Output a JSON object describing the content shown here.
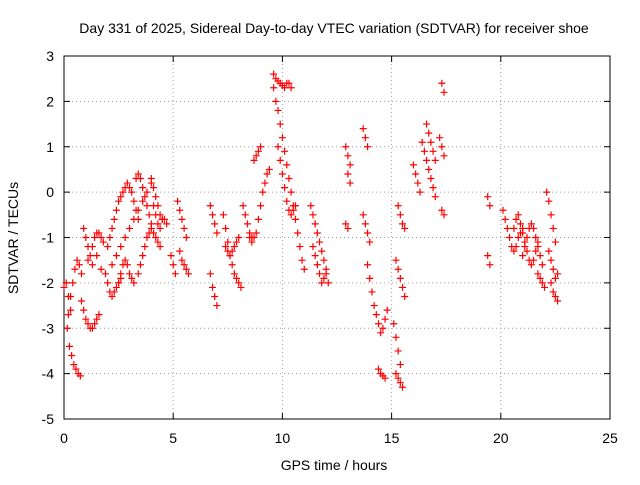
{
  "chart_data": {
    "type": "scatter",
    "title": "Day 331 of 2025, Sidereal Day-to-day VTEC variation (SDTVAR) for receiver shoe",
    "xlabel": "GPS time / hours",
    "ylabel": "SDTVAR / TECUs",
    "xlim": [
      0,
      25
    ],
    "ylim": [
      -5,
      3
    ],
    "x_ticks": [
      0,
      5,
      10,
      15,
      20,
      25
    ],
    "y_ticks": [
      -5,
      -4,
      -3,
      -2,
      -1,
      0,
      1,
      2,
      3
    ],
    "x_tick_labels": [
      "0",
      "5",
      "10",
      "15",
      "20",
      "25"
    ],
    "y_tick_labels": [
      "-5",
      "-4",
      "-3",
      "-2",
      "-1",
      "0",
      "1",
      "2",
      "3"
    ],
    "grid": true,
    "legend": "none",
    "marker": "+",
    "color": "#ff0000",
    "series": [
      {
        "name": "SDTVAR",
        "tracks": [
          {
            "x": [
              0.0,
              0.1,
              0.2,
              0.3
            ],
            "y": [
              -2.1,
              -2.0,
              -2.3,
              -2.6
            ]
          },
          {
            "x": [
              0.15,
              0.25,
              0.35,
              0.45,
              0.55,
              0.65,
              0.75
            ],
            "y": [
              -3.0,
              -3.4,
              -3.6,
              -3.8,
              -3.9,
              -4.0,
              -4.05
            ]
          },
          {
            "x": [
              0.2,
              0.3,
              0.4,
              0.5,
              0.6,
              0.7,
              0.8
            ],
            "y": [
              -2.7,
              -2.3,
              -2.0,
              -1.7,
              -1.5,
              -1.6,
              -1.8
            ]
          },
          {
            "x": [
              0.8,
              0.9,
              1.0,
              1.1,
              1.2,
              1.3,
              1.4,
              1.5,
              1.6
            ],
            "y": [
              -2.4,
              -2.6,
              -2.8,
              -2.9,
              -3.0,
              -3.0,
              -2.9,
              -2.8,
              -2.7
            ]
          },
          {
            "x": [
              0.9,
              1.0,
              1.1,
              1.2,
              1.3,
              1.4,
              1.5,
              1.6,
              1.7,
              1.8
            ],
            "y": [
              -0.8,
              -1.0,
              -1.2,
              -1.4,
              -1.2,
              -1.0,
              -0.9,
              -0.9,
              -1.0,
              -1.1
            ]
          },
          {
            "x": [
              1.1,
              1.3,
              1.5,
              1.7
            ],
            "y": [
              -1.5,
              -1.6,
              -1.4,
              -1.7
            ]
          },
          {
            "x": [
              1.9,
              2.0,
              2.1,
              2.2,
              2.3,
              2.4,
              2.5,
              2.6
            ],
            "y": [
              -1.8,
              -2.0,
              -2.2,
              -2.3,
              -2.2,
              -2.1,
              -2.0,
              -1.9
            ]
          },
          {
            "x": [
              2.0,
              2.1,
              2.2,
              2.3,
              2.4,
              2.5,
              2.6,
              2.7,
              2.8,
              2.9,
              3.0,
              3.1,
              3.2,
              3.3,
              3.4
            ],
            "y": [
              -1.2,
              -1.0,
              -0.8,
              -0.6,
              -0.4,
              -0.2,
              -0.1,
              0.0,
              0.1,
              0.2,
              0.1,
              0.0,
              -0.2,
              -0.4,
              -0.6
            ]
          },
          {
            "x": [
              2.2,
              2.4,
              2.6,
              2.8,
              3.0,
              3.2,
              3.4,
              3.6,
              3.8,
              4.0
            ],
            "y": [
              -1.6,
              -1.4,
              -1.2,
              -1.0,
              -0.8,
              -0.6,
              -0.4,
              -0.2,
              0.0,
              0.2
            ]
          },
          {
            "x": [
              2.5,
              2.6,
              2.7,
              2.8,
              2.9,
              3.0,
              3.1,
              3.2
            ],
            "y": [
              -2.0,
              -1.8,
              -1.6,
              -1.5,
              -1.6,
              -1.8,
              -1.9,
              -2.0
            ]
          },
          {
            "x": [
              3.3,
              3.4,
              3.5,
              3.6,
              3.7,
              3.8,
              3.9,
              4.0,
              4.1,
              4.2,
              4.3,
              4.4
            ],
            "y": [
              0.3,
              0.4,
              0.3,
              0.1,
              -0.1,
              -0.3,
              -0.5,
              -0.7,
              -0.9,
              -1.0,
              -1.1,
              -1.2
            ]
          },
          {
            "x": [
              3.4,
              3.5,
              3.6,
              3.7,
              3.8,
              3.9,
              4.0
            ],
            "y": [
              -1.8,
              -1.6,
              -1.4,
              -1.2,
              -1.0,
              -0.9,
              -0.8
            ]
          },
          {
            "x": [
              4.0,
              4.1,
              4.2,
              4.3,
              4.4,
              4.5,
              4.6,
              4.7
            ],
            "y": [
              0.3,
              0.1,
              -0.1,
              -0.3,
              -0.5,
              -0.6,
              -0.6,
              -0.7
            ]
          },
          {
            "x": [
              4.1,
              4.2,
              4.3,
              4.4,
              4.5
            ],
            "y": [
              -0.3,
              -0.5,
              -0.7,
              -0.8,
              -0.6
            ]
          },
          {
            "x": [
              4.9,
              5.0,
              5.1
            ],
            "y": [
              -1.4,
              -1.6,
              -1.8
            ]
          },
          {
            "x": [
              5.2,
              5.3,
              5.4,
              5.5,
              5.6
            ],
            "y": [
              -0.2,
              -0.4,
              -0.6,
              -0.8,
              -1.0
            ]
          },
          {
            "x": [
              5.3,
              5.4,
              5.5,
              5.6,
              5.7
            ],
            "y": [
              -1.3,
              -1.5,
              -1.6,
              -1.7,
              -1.8
            ]
          },
          {
            "x": [
              6.7,
              6.8,
              6.9,
              7.0
            ],
            "y": [
              -0.3,
              -0.5,
              -0.7,
              -0.9
            ]
          },
          {
            "x": [
              6.7,
              6.8,
              6.9,
              7.0
            ],
            "y": [
              -1.8,
              -2.1,
              -2.3,
              -2.5
            ]
          },
          {
            "x": [
              7.3,
              7.4,
              7.5,
              7.6,
              7.7,
              7.8,
              7.9,
              8.0,
              8.1
            ],
            "y": [
              -0.5,
              -0.8,
              -1.1,
              -1.4,
              -1.6,
              -1.8,
              -1.9,
              -2.0,
              -2.1
            ]
          },
          {
            "x": [
              7.4,
              7.5,
              7.6,
              7.7,
              7.8,
              7.9,
              8.0
            ],
            "y": [
              -1.2,
              -1.3,
              -1.4,
              -1.3,
              -1.2,
              -1.1,
              -1.0
            ]
          },
          {
            "x": [
              8.2,
              8.3,
              8.4,
              8.5,
              8.6
            ],
            "y": [
              -0.3,
              -0.5,
              -0.7,
              -0.9,
              -1.0
            ]
          },
          {
            "x": [
              8.5,
              8.6,
              8.7,
              8.8
            ],
            "y": [
              -1.0,
              -1.1,
              -1.0,
              -0.9
            ]
          },
          {
            "x": [
              8.9,
              9.0,
              9.1,
              9.2,
              9.3,
              9.4
            ],
            "y": [
              -0.6,
              -0.3,
              0.0,
              0.2,
              0.4,
              0.5
            ]
          },
          {
            "x": [
              8.7,
              8.8,
              8.9,
              9.0
            ],
            "y": [
              0.7,
              0.8,
              0.9,
              1.0
            ]
          },
          {
            "x": [
              9.6,
              9.7,
              9.8,
              9.9,
              10.0,
              10.1,
              10.2,
              10.3,
              10.4
            ],
            "y": [
              2.6,
              2.5,
              2.45,
              2.4,
              2.35,
              2.3,
              2.4,
              2.4,
              2.3
            ]
          },
          {
            "x": [
              9.6,
              9.7,
              9.8,
              9.9,
              10.0,
              10.1,
              10.2,
              10.3,
              10.4,
              10.5,
              10.6,
              10.7,
              10.8,
              10.9,
              11.0
            ],
            "y": [
              2.3,
              2.0,
              1.8,
              1.5,
              1.2,
              0.9,
              0.6,
              0.3,
              0.0,
              -0.3,
              -0.6,
              -0.9,
              -1.2,
              -1.5,
              -1.7
            ]
          },
          {
            "x": [
              9.8,
              9.9,
              10.0,
              10.1,
              10.2,
              10.3,
              10.4,
              10.5,
              10.6
            ],
            "y": [
              1.0,
              0.7,
              0.4,
              0.1,
              -0.2,
              -0.4,
              -0.5,
              -0.4,
              -0.3
            ]
          },
          {
            "x": [
              11.3,
              11.4,
              11.5,
              11.6,
              11.7,
              11.8,
              11.9,
              12.0
            ],
            "y": [
              -0.3,
              -0.5,
              -0.7,
              -0.9,
              -1.1,
              -1.3,
              -1.5,
              -1.7
            ]
          },
          {
            "x": [
              11.4,
              11.5,
              11.6,
              11.7,
              11.8,
              11.9,
              12.0,
              12.1
            ],
            "y": [
              -1.2,
              -1.4,
              -1.6,
              -1.8,
              -2.0,
              -1.9,
              -1.8,
              -2.0
            ]
          },
          {
            "x": [
              12.9,
              13.0,
              13.1
            ],
            "y": [
              1.0,
              0.8,
              0.6
            ]
          },
          {
            "x": [
              13.0,
              13.1
            ],
            "y": [
              0.4,
              0.2
            ]
          },
          {
            "x": [
              12.9,
              13.0
            ],
            "y": [
              -0.7,
              -0.8
            ]
          },
          {
            "x": [
              13.7,
              13.8,
              13.9
            ],
            "y": [
              1.4,
              1.2,
              1.0
            ]
          },
          {
            "x": [
              13.7,
              13.8,
              13.9,
              14.0
            ],
            "y": [
              -0.5,
              -0.7,
              -0.9,
              -1.1
            ]
          },
          {
            "x": [
              13.9,
              14.0,
              14.1,
              14.2,
              14.3,
              14.4,
              14.5,
              14.6,
              14.7,
              14.8
            ],
            "y": [
              -1.6,
              -1.9,
              -2.2,
              -2.5,
              -2.7,
              -2.9,
              -3.1,
              -3.0,
              -2.8,
              -2.6
            ]
          },
          {
            "x": [
              14.4,
              14.5,
              14.6,
              14.7
            ],
            "y": [
              -3.9,
              -4.0,
              -4.05,
              -4.1
            ]
          },
          {
            "x": [
              15.1,
              15.2,
              15.3,
              15.4
            ],
            "y": [
              -2.9,
              -3.2,
              -3.5,
              -3.8
            ]
          },
          {
            "x": [
              15.2,
              15.3,
              15.4,
              15.5
            ],
            "y": [
              -4.0,
              -4.1,
              -4.2,
              -4.3
            ]
          },
          {
            "x": [
              15.2,
              15.3,
              15.4,
              15.5,
              15.6
            ],
            "y": [
              -1.5,
              -1.7,
              -1.9,
              -2.1,
              -2.3
            ]
          },
          {
            "x": [
              15.3,
              15.4,
              15.5,
              15.6
            ],
            "y": [
              -0.3,
              -0.5,
              -0.7,
              -0.8
            ]
          },
          {
            "x": [
              16.0,
              16.1,
              16.2,
              16.3
            ],
            "y": [
              0.6,
              0.4,
              0.2,
              0.0
            ]
          },
          {
            "x": [
              16.4,
              16.5,
              16.6,
              16.7,
              16.8,
              16.9,
              17.0
            ],
            "y": [
              1.1,
              0.9,
              0.7,
              0.5,
              0.3,
              0.1,
              -0.1
            ]
          },
          {
            "x": [
              16.6,
              16.7,
              16.8,
              16.9,
              17.0
            ],
            "y": [
              1.5,
              1.3,
              1.1,
              0.9,
              0.7
            ]
          },
          {
            "x": [
              17.2,
              17.3,
              17.4
            ],
            "y": [
              1.2,
              1.0,
              0.8
            ]
          },
          {
            "x": [
              17.3,
              17.4
            ],
            "y": [
              2.4,
              2.2
            ]
          },
          {
            "x": [
              17.3,
              17.4
            ],
            "y": [
              -0.4,
              -0.5
            ]
          },
          {
            "x": [
              19.4,
              19.5
            ],
            "y": [
              -1.4,
              -1.6
            ]
          },
          {
            "x": [
              19.4,
              19.5
            ],
            "y": [
              -0.1,
              -0.3
            ]
          },
          {
            "x": [
              20.1,
              20.2,
              20.3,
              20.4,
              20.5,
              20.6,
              20.7,
              20.8,
              20.9,
              21.0
            ],
            "y": [
              -0.4,
              -0.6,
              -0.8,
              -1.0,
              -1.2,
              -1.3,
              -1.2,
              -1.0,
              -0.9,
              -0.8
            ]
          },
          {
            "x": [
              20.6,
              20.7,
              20.8,
              20.9,
              21.0,
              21.1,
              21.2,
              21.3,
              21.4,
              21.5,
              21.6,
              21.7
            ],
            "y": [
              -0.8,
              -0.6,
              -0.5,
              -0.7,
              -0.9,
              -1.1,
              -1.3,
              -1.5,
              -1.6,
              -1.5,
              -1.3,
              -1.1
            ]
          },
          {
            "x": [
              21.0,
              21.1,
              21.2,
              21.3,
              21.4,
              21.5,
              21.6,
              21.7,
              21.8,
              21.9
            ],
            "y": [
              -1.4,
              -1.2,
              -1.0,
              -0.8,
              -0.7,
              -0.8,
              -1.0,
              -1.2,
              -1.4,
              -1.6
            ]
          },
          {
            "x": [
              21.7,
              21.8,
              21.9,
              22.0
            ],
            "y": [
              -1.8,
              -1.9,
              -2.0,
              -2.1
            ]
          },
          {
            "x": [
              22.1,
              22.2,
              22.3,
              22.4,
              22.5
            ],
            "y": [
              0.0,
              -0.2,
              -0.5,
              -0.8,
              -1.1
            ]
          },
          {
            "x": [
              22.2,
              22.3,
              22.4,
              22.5,
              22.6
            ],
            "y": [
              -1.3,
              -1.5,
              -1.7,
              -1.9,
              -1.8
            ]
          },
          {
            "x": [
              22.3,
              22.4,
              22.5,
              22.6
            ],
            "y": [
              -2.0,
              -2.2,
              -2.3,
              -2.4
            ]
          }
        ]
      }
    ]
  }
}
